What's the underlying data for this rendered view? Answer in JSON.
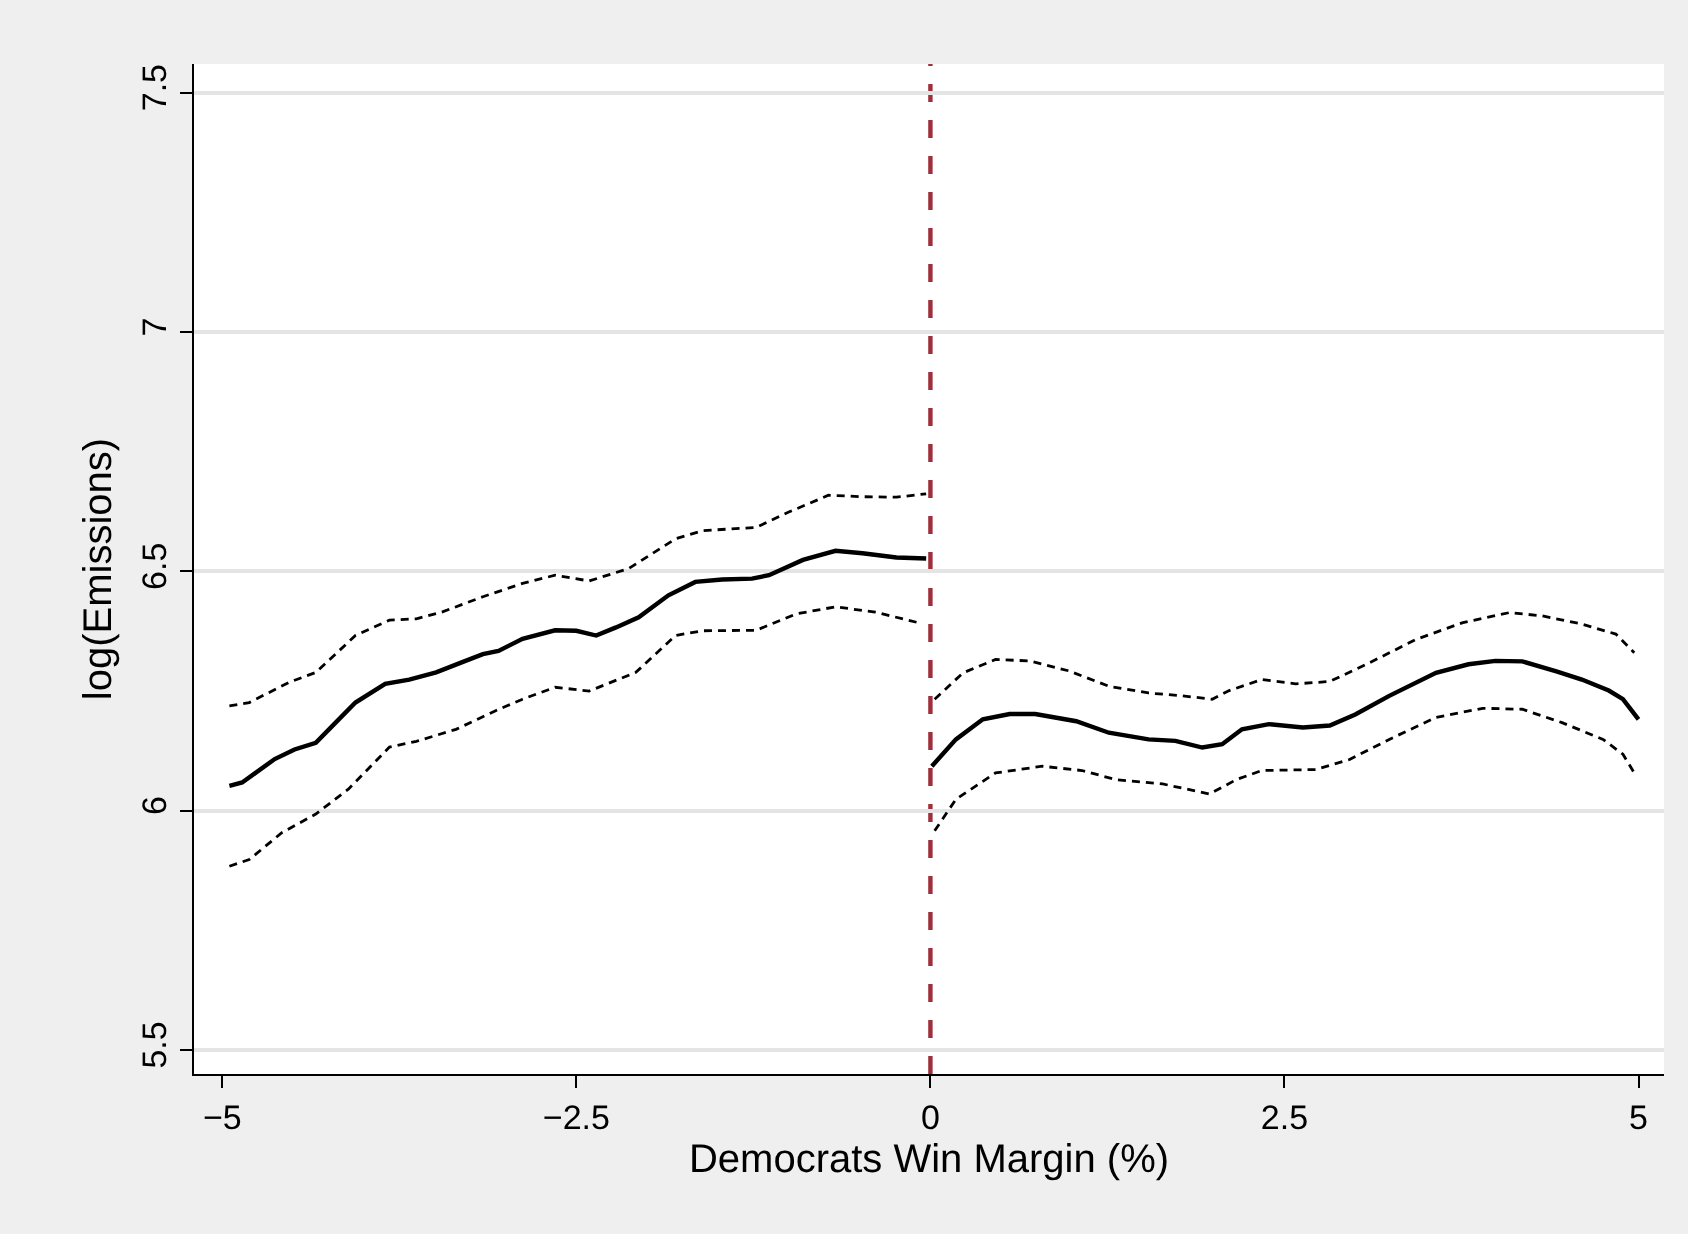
{
  "chart_data": {
    "type": "line",
    "xlabel": "Democrats Win Margin (%)",
    "ylabel": "log(Emissions)",
    "xlim": [
      -5.2,
      5.18
    ],
    "ylim": [
      5.45,
      7.56
    ],
    "xticks": [
      {
        "value": -5,
        "label": "−5"
      },
      {
        "value": -2.5,
        "label": "−2.5"
      },
      0,
      2.5,
      5
    ],
    "yticks": [
      5.5,
      6,
      6.5,
      7,
      7.5
    ],
    "grid": "y",
    "marker": "none",
    "ref_lines": [
      {
        "axis": "x",
        "value": 0,
        "color": "#9e2f3b",
        "line_style": "dashed"
      }
    ],
    "series": [
      {
        "color": "#000000",
        "line_style": "solid",
        "x": [
          -4.95,
          -4.86,
          -4.63,
          -4.49,
          -4.34,
          -4.2,
          -4.06,
          -3.85,
          -3.68,
          -3.49,
          -3.31,
          -3.16,
          -3.05,
          -2.88,
          -2.65,
          -2.5,
          -2.36,
          -2.22,
          -2.06,
          -1.85,
          -1.66,
          -1.47,
          -1.26,
          -1.14,
          -0.9,
          -0.67,
          -0.48,
          -0.24,
          -0.03
        ],
        "values": [
          6.052,
          6.059,
          6.108,
          6.128,
          6.142,
          6.184,
          6.226,
          6.265,
          6.274,
          6.289,
          6.31,
          6.327,
          6.334,
          6.359,
          6.377,
          6.376,
          6.366,
          6.383,
          6.404,
          6.45,
          6.478,
          6.483,
          6.485,
          6.492,
          6.524,
          6.543,
          6.538,
          6.529,
          6.527
        ]
      },
      {
        "color": "#000000",
        "line_style": "dashed",
        "x": [
          -4.95,
          -4.81,
          -4.53,
          -4.34,
          -4.06,
          -3.82,
          -3.63,
          -3.45,
          -3.16,
          -2.88,
          -2.65,
          -2.41,
          -2.13,
          -1.8,
          -1.61,
          -1.23,
          -1.0,
          -0.72,
          -0.48,
          -0.24,
          -0.03
        ],
        "values": [
          6.219,
          6.226,
          6.268,
          6.289,
          6.366,
          6.398,
          6.401,
          6.415,
          6.447,
          6.475,
          6.492,
          6.48,
          6.506,
          6.568,
          6.585,
          6.592,
          6.624,
          6.659,
          6.656,
          6.655,
          6.662
        ]
      },
      {
        "color": "#000000",
        "line_style": "dashed",
        "x": [
          -4.95,
          -4.81,
          -4.58,
          -4.34,
          -4.11,
          -3.82,
          -3.63,
          -3.35,
          -3.07,
          -2.88,
          -2.65,
          -2.41,
          -2.08,
          -1.8,
          -1.61,
          -1.23,
          -0.95,
          -0.67,
          -0.39,
          -0.06
        ],
        "values": [
          5.884,
          5.898,
          5.954,
          5.993,
          6.045,
          6.133,
          6.145,
          6.17,
          6.209,
          6.233,
          6.258,
          6.25,
          6.289,
          6.366,
          6.376,
          6.377,
          6.411,
          6.426,
          6.415,
          6.391
        ]
      },
      {
        "color": "#000000",
        "line_style": "solid",
        "x": [
          0.01,
          0.18,
          0.37,
          0.56,
          0.74,
          1.03,
          1.26,
          1.54,
          1.73,
          1.92,
          2.06,
          2.2,
          2.39,
          2.63,
          2.82,
          3.0,
          3.24,
          3.57,
          3.8,
          3.99,
          4.18,
          4.42,
          4.6,
          4.79,
          4.89,
          5.0
        ],
        "values": [
          6.093,
          6.149,
          6.191,
          6.202,
          6.202,
          6.187,
          6.163,
          6.149,
          6.146,
          6.132,
          6.139,
          6.17,
          6.181,
          6.174,
          6.178,
          6.201,
          6.24,
          6.288,
          6.306,
          6.313,
          6.312,
          6.291,
          6.274,
          6.251,
          6.233,
          6.191
        ]
      },
      {
        "color": "#000000",
        "line_style": "dashed",
        "x": [
          0.03,
          0.23,
          0.46,
          0.7,
          0.98,
          1.26,
          1.54,
          1.78,
          1.99,
          2.11,
          2.34,
          2.58,
          2.82,
          3.1,
          3.43,
          3.76,
          4.09,
          4.32,
          4.6,
          4.84,
          4.97
        ],
        "values": [
          6.233,
          6.288,
          6.316,
          6.313,
          6.292,
          6.26,
          6.246,
          6.24,
          6.233,
          6.251,
          6.274,
          6.265,
          6.27,
          6.309,
          6.358,
          6.393,
          6.414,
          6.407,
          6.39,
          6.369,
          6.33
        ]
      },
      {
        "color": "#000000",
        "line_style": "dashed",
        "x": [
          0.03,
          0.18,
          0.46,
          0.79,
          1.07,
          1.31,
          1.64,
          1.97,
          2.16,
          2.34,
          2.72,
          2.96,
          3.24,
          3.57,
          3.9,
          4.18,
          4.46,
          4.75,
          4.89,
          4.97
        ],
        "values": [
          5.958,
          6.024,
          6.079,
          6.093,
          6.084,
          6.065,
          6.056,
          6.035,
          6.065,
          6.084,
          6.086,
          6.107,
          6.149,
          6.195,
          6.214,
          6.212,
          6.184,
          6.149,
          6.118,
          6.079
        ]
      }
    ]
  }
}
